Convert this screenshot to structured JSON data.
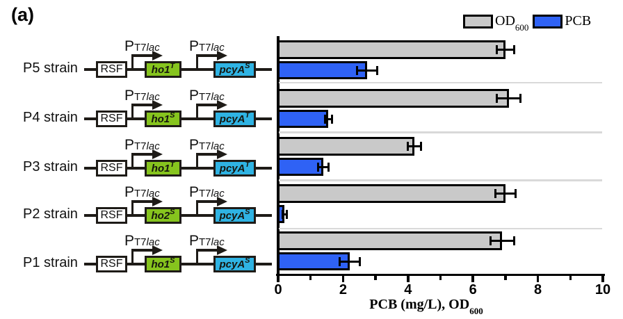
{
  "panel_label": "(a)",
  "backbone_label": "RSF",
  "promoter_label": {
    "p": "P",
    "sub": "T7",
    "gene": "lac"
  },
  "strains": [
    {
      "label": "P5 strain",
      "genes": [
        {
          "name": "ho1",
          "sup": "T",
          "fill": "green"
        },
        {
          "name": "pcyA",
          "sup": "S",
          "fill": "cyan"
        }
      ]
    },
    {
      "label": "P4 strain",
      "genes": [
        {
          "name": "ho1",
          "sup": "S",
          "fill": "green"
        },
        {
          "name": "pcyA",
          "sup": "T",
          "fill": "cyan"
        }
      ]
    },
    {
      "label": "P3 strain",
      "genes": [
        {
          "name": "ho1",
          "sup": "T",
          "fill": "green"
        },
        {
          "name": "pcyA",
          "sup": "T",
          "fill": "cyan"
        }
      ]
    },
    {
      "label": "P2 strain",
      "genes": [
        {
          "name": "ho2",
          "sup": "S",
          "fill": "green"
        },
        {
          "name": "pcyA",
          "sup": "S",
          "fill": "cyan"
        }
      ]
    },
    {
      "label": "P1 strain",
      "genes": [
        {
          "name": "ho1",
          "sup": "S",
          "fill": "green"
        },
        {
          "name": "pcyA",
          "sup": "S",
          "fill": "cyan"
        }
      ]
    }
  ],
  "chart_data": {
    "type": "bar",
    "orientation": "horizontal",
    "categories": [
      "P5 strain",
      "P4 strain",
      "P3 strain",
      "P2 strain",
      "P1 strain"
    ],
    "series": [
      {
        "name": "OD600",
        "color": "#c9c9c9",
        "values": [
          7.0,
          7.1,
          4.2,
          7.0,
          6.9
        ],
        "errors": [
          0.25,
          0.35,
          0.2,
          0.3,
          0.35
        ]
      },
      {
        "name": "PCB",
        "color": "#2f62f5",
        "values": [
          2.75,
          1.55,
          1.4,
          0.2,
          2.2
        ],
        "errors": [
          0.3,
          0.1,
          0.15,
          0.05,
          0.3
        ]
      }
    ],
    "xlim": [
      0,
      10
    ],
    "xticks": [
      0,
      2,
      4,
      6,
      8,
      10
    ],
    "minor_xticks": [
      1,
      3,
      5,
      7,
      9
    ],
    "xlabel": "PCB (mg/L), OD600",
    "xlabel_main": "PCB (mg/L), OD",
    "xlabel_sub": "600",
    "grid": false,
    "legend_position": "top-right",
    "legend": [
      {
        "label": "OD",
        "sub": "600",
        "color": "#c9c9c9"
      },
      {
        "label": "PCB",
        "sub": "",
        "color": "#2f62f5"
      }
    ]
  },
  "colors": {
    "outline": "#1e1b17",
    "bar_gray": "#c9c9c9",
    "bar_blue": "#2f62f5",
    "gene_green": "#86c41e",
    "gene_cyan": "#2fb3e3",
    "separator": "#d9d9d9"
  }
}
